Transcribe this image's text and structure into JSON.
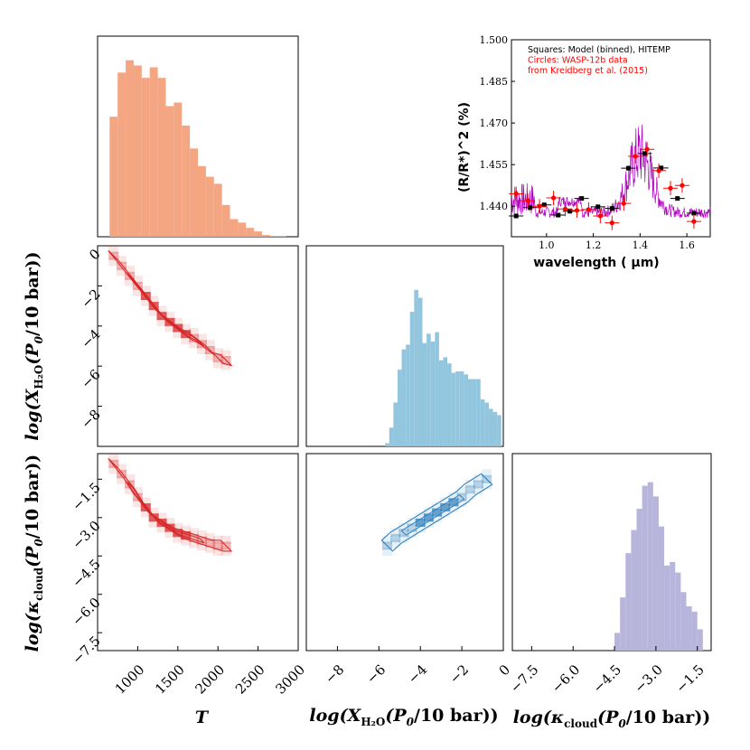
{
  "colors": {
    "temperature": "#f4a582",
    "temperature_edge": "#e06a43",
    "red_contour": "#d62728",
    "water": "#92c5de",
    "water_contour": "#3182bd",
    "cloud": "#b8b5dc",
    "model": "#b000c0",
    "data_points": "#ff0000"
  },
  "labels": {
    "x_T": "T",
    "x_water": "log(X_H2O(P0/10 bar))",
    "x_cloud": "log(κ_cloud(P0/10 bar))",
    "y_water": "log(X_H2O(P0/10 bar))",
    "y_cloud": "log(κ_cloud(P0/10 bar))"
  },
  "chart_data": [
    {
      "type": "bar",
      "panel": "T histogram",
      "categories": [
        "700",
        "800",
        "900",
        "1000",
        "1100",
        "1200",
        "1300",
        "1400",
        "1500",
        "1600",
        "1700",
        "1800",
        "1900",
        "2000",
        "2100",
        "2200",
        "2300",
        "2400",
        "2500",
        "2600",
        "2700",
        "2800"
      ],
      "values": [
        0.68,
        0.93,
        1.0,
        0.97,
        0.9,
        0.96,
        0.9,
        0.74,
        0.76,
        0.63,
        0.5,
        0.4,
        0.34,
        0.3,
        0.18,
        0.1,
        0.08,
        0.05,
        0.03,
        0.01,
        0.005,
        0.005
      ],
      "xlim": [
        500,
        3000
      ]
    },
    {
      "type": "bar",
      "panel": "log X_H2O histogram",
      "categories": [
        "-5.6",
        "-5.4",
        "-5.2",
        "-5.0",
        "-4.8",
        "-4.6",
        "-4.4",
        "-4.2",
        "-4.0",
        "-3.8",
        "-3.6",
        "-3.4",
        "-3.2",
        "-3.0",
        "-2.8",
        "-2.6",
        "-2.4",
        "-2.2",
        "-2.0",
        "-1.8",
        "-1.6",
        "-1.4",
        "-1.2",
        "-1.0",
        "-0.8",
        "-0.6",
        "-0.4",
        "-0.2"
      ],
      "values": [
        0.02,
        0.12,
        0.28,
        0.49,
        0.62,
        0.65,
        0.86,
        1.0,
        0.95,
        0.66,
        0.72,
        0.67,
        0.73,
        0.55,
        0.57,
        0.53,
        0.47,
        0.48,
        0.48,
        0.46,
        0.43,
        0.43,
        0.43,
        0.3,
        0.28,
        0.24,
        0.22,
        0.2
      ],
      "xlim": [
        -9.5,
        0
      ]
    },
    {
      "type": "bar",
      "panel": "log kappa_cloud histogram",
      "categories": [
        "-4.4",
        "-4.2",
        "-4.0",
        "-3.8",
        "-3.6",
        "-3.4",
        "-3.2",
        "-3.0",
        "-2.8",
        "-2.6",
        "-2.4",
        "-2.2",
        "-2.0",
        "-1.8",
        "-1.6",
        "-1.4"
      ],
      "values": [
        0.1,
        0.3,
        0.55,
        0.68,
        0.8,
        0.93,
        0.95,
        0.87,
        0.7,
        0.48,
        0.5,
        0.44,
        0.33,
        0.25,
        0.22,
        0.12
      ],
      "xlim": [
        -8.2,
        -1.0
      ]
    },
    {
      "type": "heatmap",
      "panel": "log X_H2O vs T",
      "x": [
        700,
        800,
        900,
        1000,
        1100,
        1200,
        1300,
        1400,
        1500,
        1600,
        1700,
        1800,
        1900,
        2000,
        2100
      ],
      "y": [
        -0.5,
        -1.0,
        -1.5,
        -2.0,
        -2.5,
        -3.0,
        -3.5,
        -3.8,
        -4.1,
        -4.4,
        -4.6,
        -4.9,
        -5.2,
        -5.6,
        -5.7
      ],
      "xlim": [
        500,
        3000
      ],
      "ylim": [
        -10,
        0
      ]
    },
    {
      "type": "heatmap",
      "panel": "log kappa_cloud vs T",
      "x": [
        700,
        800,
        900,
        1000,
        1100,
        1200,
        1300,
        1400,
        1500,
        1600,
        1700,
        1800,
        1900,
        2000,
        2100
      ],
      "y": [
        -0.9,
        -1.3,
        -1.7,
        -2.2,
        -2.6,
        -3.0,
        -3.2,
        -3.4,
        -3.6,
        -3.7,
        -3.8,
        -3.9,
        -4.0,
        -4.1,
        -4.1
      ],
      "xlim": [
        500,
        3000
      ],
      "ylim": [
        -8.2,
        -0.5
      ]
    },
    {
      "type": "heatmap",
      "panel": "log kappa_cloud vs log X_H2O",
      "x": [
        -5.6,
        -5.2,
        -4.8,
        -4.4,
        -4.0,
        -3.6,
        -3.2,
        -2.8,
        -2.4,
        -2.0,
        -1.6,
        -1.2,
        -0.8
      ],
      "y": [
        -4.1,
        -3.8,
        -3.6,
        -3.4,
        -3.2,
        -3.0,
        -2.8,
        -2.6,
        -2.4,
        -2.2,
        -1.9,
        -1.7,
        -1.5
      ],
      "xlim": [
        -9.5,
        0
      ],
      "ylim": [
        -8.2,
        -0.5
      ]
    },
    {
      "type": "line",
      "panel": "inset transmission spectrum",
      "xlabel": "wavelength ( μm)",
      "ylabel": "(R/R*)^2 (%)",
      "xlim": [
        0.85,
        1.7
      ],
      "ylim": [
        1.429,
        1.5
      ],
      "xticks": [
        "1.0",
        "1.2",
        "1.4",
        "1.6"
      ],
      "yticks": [
        "1.440",
        "1.455",
        "1.470",
        "1.485",
        "1.500"
      ],
      "legend": [
        "Squares: Model (binned), HITEMP",
        "Circles: WASP-12b data",
        "from Kreidberg et al. (2015)"
      ],
      "series": [
        {
          "name": "Squares: Model (binned), HITEMP",
          "x": [
            0.87,
            0.93,
            0.99,
            1.05,
            1.1,
            1.15,
            1.22,
            1.28,
            1.35,
            1.42,
            1.49,
            1.56,
            1.63
          ],
          "y": [
            1.4365,
            1.4395,
            1.4405,
            1.4368,
            1.4382,
            1.4428,
            1.4398,
            1.4392,
            1.4537,
            1.459,
            1.4538,
            1.4428,
            1.4375
          ]
        },
        {
          "name": "Circles: WASP-12b data",
          "x": [
            0.87,
            0.92,
            0.97,
            1.03,
            1.08,
            1.13,
            1.18,
            1.23,
            1.28,
            1.33,
            1.38,
            1.43,
            1.48,
            1.53,
            1.58,
            1.63
          ],
          "y": [
            1.4445,
            1.442,
            1.44,
            1.443,
            1.439,
            1.4385,
            1.4388,
            1.4365,
            1.434,
            1.441,
            1.458,
            1.4605,
            1.4528,
            1.4465,
            1.4475,
            1.4345
          ]
        }
      ]
    }
  ]
}
